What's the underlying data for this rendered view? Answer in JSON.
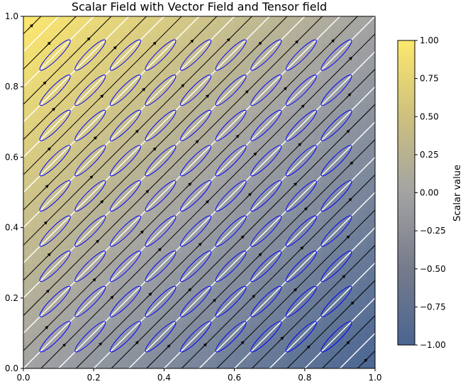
{
  "chart_data": [
    {
      "type": "heatmap",
      "title": "Scalar Field with Vector Field and Tensor field",
      "xlabel": "",
      "ylabel": "",
      "xlim": [
        0,
        1
      ],
      "ylim": [
        0,
        1
      ],
      "x_ticks": [
        0.0,
        0.2,
        0.4,
        0.6,
        0.8,
        1.0
      ],
      "y_ticks": [
        0.0,
        0.2,
        0.4,
        0.6,
        0.8,
        1.0
      ],
      "x_tick_labels": [
        "0.0",
        "0.2",
        "0.4",
        "0.6",
        "0.8",
        "1.0"
      ],
      "y_tick_labels": [
        "0.0",
        "0.2",
        "0.4",
        "0.6",
        "0.8",
        "1.0"
      ],
      "grid": false,
      "scalar_field": {
        "formula": "y - x",
        "range": [
          -1,
          1
        ],
        "colormap": "cividis",
        "low_color": "#4a6592",
        "mid_color": "#a3a3a3",
        "high_color": "#fde86d"
      },
      "contour_lines": {
        "color": "#ffffff",
        "levels": [
          -0.9,
          -0.8,
          -0.7,
          -0.6,
          -0.5,
          -0.4,
          -0.3,
          -0.2,
          -0.1,
          0.0,
          0.1,
          0.2,
          0.3,
          0.4,
          0.5,
          0.6,
          0.7,
          0.8,
          0.9
        ]
      },
      "vector_field": {
        "kind": "streamlines",
        "direction": [
          1,
          1
        ],
        "color": "#000000",
        "levels": [
          -0.95,
          -0.85,
          -0.75,
          -0.65,
          -0.55,
          -0.45,
          -0.35,
          -0.25,
          -0.15,
          -0.05,
          0.05,
          0.15,
          0.25,
          0.35,
          0.45,
          0.55,
          0.65,
          0.75,
          0.85,
          0.95
        ]
      },
      "tensor_field": {
        "kind": "ellipses",
        "color": "#0000ff",
        "orientation_deg": 45,
        "major_axis": 0.12,
        "minor_axis": 0.025,
        "centers_x": [
          0.09,
          0.19,
          0.29,
          0.39,
          0.49,
          0.59,
          0.69,
          0.79,
          0.89
        ],
        "centers_y": [
          0.09,
          0.19,
          0.29,
          0.39,
          0.49,
          0.59,
          0.69,
          0.79,
          0.89
        ]
      }
    },
    {
      "type": "colorbar",
      "label": "Scalar value",
      "range": [
        -1,
        1
      ],
      "ticks": [
        -1.0,
        -0.75,
        -0.5,
        -0.25,
        0.0,
        0.25,
        0.5,
        0.75,
        1.0
      ],
      "tick_labels": [
        "−1.00",
        "−0.75",
        "−0.50",
        "−0.25",
        "0.00",
        "0.25",
        "0.50",
        "0.75",
        "1.00"
      ]
    }
  ]
}
